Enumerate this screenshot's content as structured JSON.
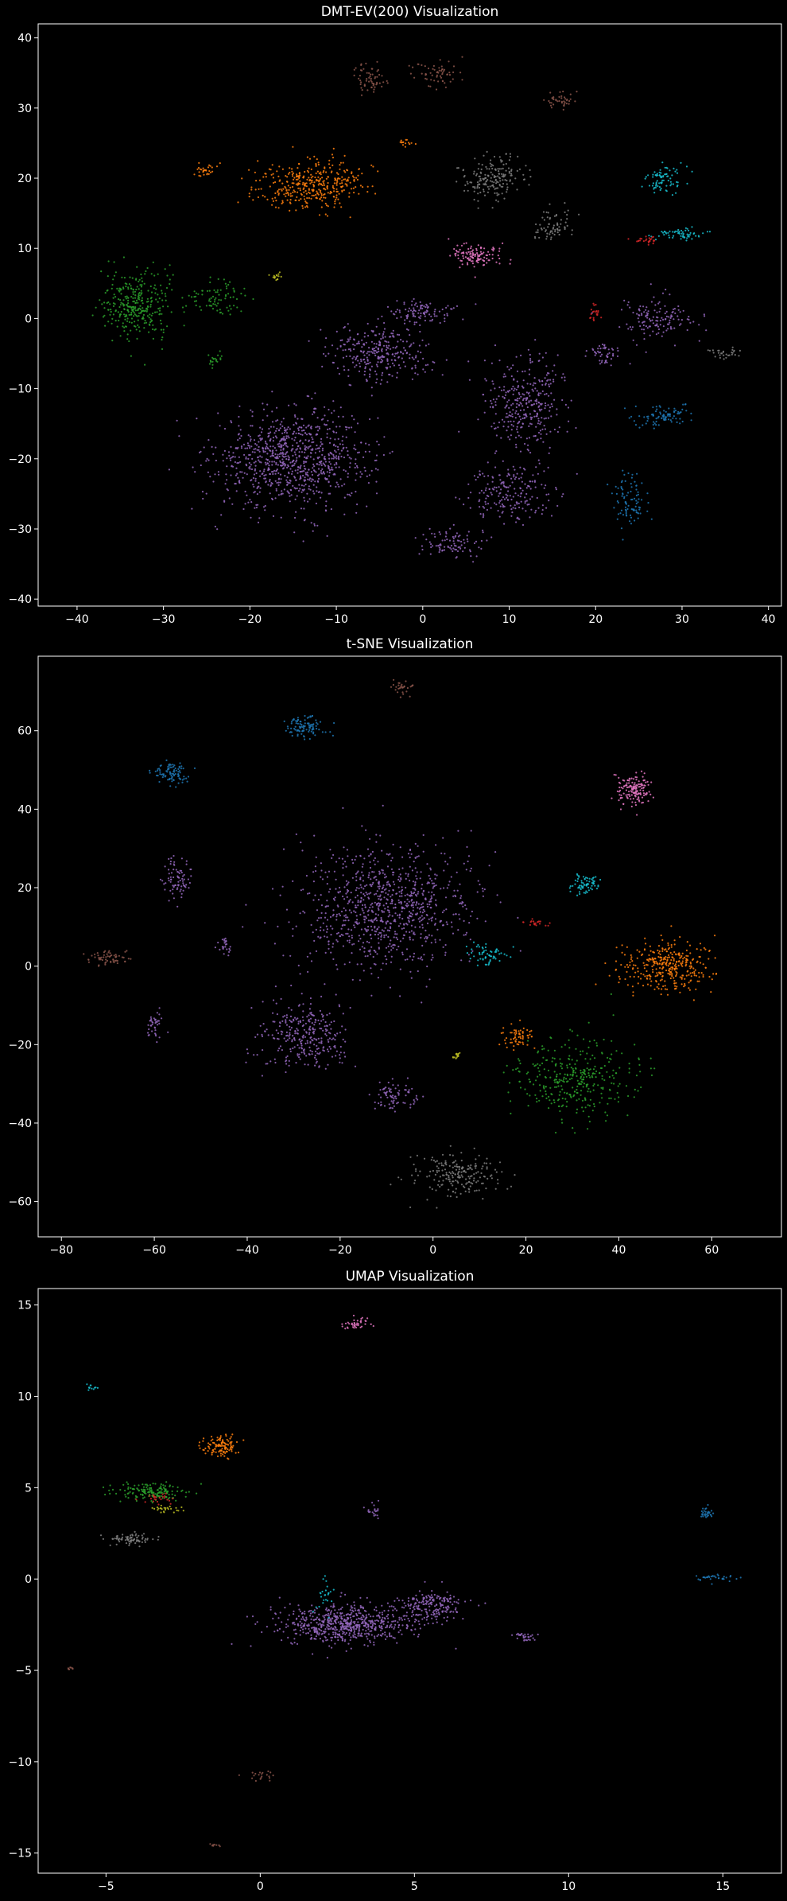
{
  "palette": {
    "blue": "#1f77b4",
    "orange": "#ff7f0e",
    "green": "#2ca02c",
    "red": "#d62728",
    "purple": "#9467bd",
    "brown": "#8c564b",
    "pink": "#e377c2",
    "gray": "#7f7f7f",
    "olive": "#bcbd22",
    "cyan": "#17becf",
    "background": "#000000",
    "foreground": "#ffffff"
  },
  "chart_data": [
    {
      "type": "scatter",
      "title": "DMT-EV(200) Visualization",
      "xlabel": "",
      "ylabel": "",
      "xlim": [
        -44.5,
        41.5
      ],
      "ylim": [
        -41,
        42
      ],
      "xticks": [
        -40,
        -30,
        -20,
        -10,
        0,
        10,
        20,
        30,
        40
      ],
      "yticks": [
        -40,
        -30,
        -20,
        -10,
        0,
        10,
        20,
        30,
        40
      ],
      "grid": false,
      "legend": "none",
      "clusters": [
        {
          "color": "purple",
          "center": [
            -15,
            -20
          ],
          "spread": [
            9,
            7
          ],
          "n": 900
        },
        {
          "color": "purple",
          "center": [
            -5,
            -5
          ],
          "spread": [
            6,
            4
          ],
          "n": 300
        },
        {
          "color": "purple",
          "center": [
            12,
            -12
          ],
          "spread": [
            5,
            7
          ],
          "n": 330
        },
        {
          "color": "purple",
          "center": [
            10,
            -25
          ],
          "spread": [
            5,
            4
          ],
          "n": 200
        },
        {
          "color": "purple",
          "center": [
            3,
            -32
          ],
          "spread": [
            4,
            2
          ],
          "n": 90
        },
        {
          "color": "purple",
          "center": [
            27,
            0
          ],
          "spread": [
            4,
            3
          ],
          "n": 140
        },
        {
          "color": "purple",
          "center": [
            0,
            1
          ],
          "spread": [
            4,
            1.5
          ],
          "n": 100
        },
        {
          "color": "purple",
          "center": [
            21,
            -5
          ],
          "spread": [
            2,
            1.5
          ],
          "n": 50
        },
        {
          "color": "orange",
          "center": [
            -13,
            19
          ],
          "spread": [
            6,
            3.5
          ],
          "n": 380
        },
        {
          "color": "orange",
          "center": [
            -25,
            21
          ],
          "spread": [
            1.5,
            1
          ],
          "n": 30
        },
        {
          "color": "orange",
          "center": [
            -2,
            25
          ],
          "spread": [
            0.8,
            0.6
          ],
          "n": 15
        },
        {
          "color": "green",
          "center": [
            -33,
            2
          ],
          "spread": [
            4,
            5
          ],
          "n": 320
        },
        {
          "color": "green",
          "center": [
            -24,
            3
          ],
          "spread": [
            3,
            2.5
          ],
          "n": 80
        },
        {
          "color": "green",
          "center": [
            -24,
            -6
          ],
          "spread": [
            1,
            1
          ],
          "n": 20
        },
        {
          "color": "gray",
          "center": [
            8,
            20
          ],
          "spread": [
            4,
            3
          ],
          "n": 180
        },
        {
          "color": "gray",
          "center": [
            15,
            13
          ],
          "spread": [
            2,
            2.5
          ],
          "n": 70
        },
        {
          "color": "gray",
          "center": [
            35,
            -5
          ],
          "spread": [
            2,
            0.6
          ],
          "n": 30
        },
        {
          "color": "pink",
          "center": [
            6,
            9
          ],
          "spread": [
            3,
            1.6
          ],
          "n": 120
        },
        {
          "color": "cyan",
          "center": [
            28,
            20
          ],
          "spread": [
            2.5,
            2
          ],
          "n": 80
        },
        {
          "color": "cyan",
          "center": [
            30,
            12
          ],
          "spread": [
            3,
            1
          ],
          "n": 60
        },
        {
          "color": "blue",
          "center": [
            28,
            -14
          ],
          "spread": [
            3.5,
            1.5
          ],
          "n": 90
        },
        {
          "color": "blue",
          "center": [
            24,
            -26
          ],
          "spread": [
            2,
            3.5
          ],
          "n": 90
        },
        {
          "color": "brown",
          "center": [
            -6,
            34
          ],
          "spread": [
            2.5,
            2
          ],
          "n": 60
        },
        {
          "color": "brown",
          "center": [
            2,
            35
          ],
          "spread": [
            3,
            2
          ],
          "n": 60
        },
        {
          "color": "brown",
          "center": [
            16,
            31
          ],
          "spread": [
            2,
            1.5
          ],
          "n": 40
        },
        {
          "color": "red",
          "center": [
            26,
            11
          ],
          "spread": [
            2,
            0.5
          ],
          "n": 25
        },
        {
          "color": "red",
          "center": [
            20,
            1
          ],
          "spread": [
            0.6,
            2
          ],
          "n": 20
        },
        {
          "color": "olive",
          "center": [
            -17,
            6
          ],
          "spread": [
            1,
            0.6
          ],
          "n": 15
        }
      ]
    },
    {
      "type": "scatter",
      "title": "t-SNE Visualization",
      "xlabel": "",
      "ylabel": "",
      "xlim": [
        -85,
        75
      ],
      "ylim": [
        -69,
        79
      ],
      "xticks": [
        -80,
        -60,
        -40,
        -20,
        0,
        20,
        40,
        60
      ],
      "yticks": [
        -60,
        -40,
        -20,
        0,
        20,
        40,
        60
      ],
      "grid": false,
      "legend": "none",
      "clusters": [
        {
          "color": "purple",
          "center": [
            -10,
            15
          ],
          "spread": [
            18,
            16
          ],
          "n": 900
        },
        {
          "color": "purple",
          "center": [
            -28,
            -18
          ],
          "spread": [
            9,
            9
          ],
          "n": 300
        },
        {
          "color": "purple",
          "center": [
            -8,
            -33
          ],
          "spread": [
            5,
            4
          ],
          "n": 80
        },
        {
          "color": "purple",
          "center": [
            -55,
            22
          ],
          "spread": [
            3,
            5
          ],
          "n": 80
        },
        {
          "color": "purple",
          "center": [
            -60,
            -15
          ],
          "spread": [
            2,
            4
          ],
          "n": 40
        },
        {
          "color": "purple",
          "center": [
            -45,
            5
          ],
          "spread": [
            2,
            2
          ],
          "n": 25
        },
        {
          "color": "orange",
          "center": [
            50,
            0
          ],
          "spread": [
            10,
            6
          ],
          "n": 350
        },
        {
          "color": "orange",
          "center": [
            18,
            -18
          ],
          "spread": [
            3,
            3
          ],
          "n": 60
        },
        {
          "color": "green",
          "center": [
            30,
            -28
          ],
          "spread": [
            13,
            10
          ],
          "n": 350
        },
        {
          "color": "gray",
          "center": [
            5,
            -53
          ],
          "spread": [
            9,
            5
          ],
          "n": 200
        },
        {
          "color": "pink",
          "center": [
            43,
            45
          ],
          "spread": [
            4,
            4
          ],
          "n": 150
        },
        {
          "color": "cyan",
          "center": [
            33,
            21
          ],
          "spread": [
            3,
            3
          ],
          "n": 70
        },
        {
          "color": "cyan",
          "center": [
            12,
            3
          ],
          "spread": [
            4,
            3
          ],
          "n": 60
        },
        {
          "color": "blue",
          "center": [
            -28,
            61
          ],
          "spread": [
            4,
            3
          ],
          "n": 100
        },
        {
          "color": "blue",
          "center": [
            -56,
            49
          ],
          "spread": [
            4,
            3
          ],
          "n": 90
        },
        {
          "color": "brown",
          "center": [
            -70,
            2
          ],
          "spread": [
            6,
            2
          ],
          "n": 60
        },
        {
          "color": "brown",
          "center": [
            -7,
            71
          ],
          "spread": [
            2,
            1.5
          ],
          "n": 30
        },
        {
          "color": "red",
          "center": [
            22,
            11
          ],
          "spread": [
            3,
            1
          ],
          "n": 20
        },
        {
          "color": "olive",
          "center": [
            5,
            -23
          ],
          "spread": [
            1,
            1
          ],
          "n": 15
        }
      ]
    },
    {
      "type": "scatter",
      "title": "UMAP Visualization",
      "xlabel": "",
      "ylabel": "",
      "xlim": [
        -7.2,
        16.9
      ],
      "ylim": [
        -16.1,
        15.9
      ],
      "xticks": [
        -5,
        0,
        5,
        10,
        15
      ],
      "yticks": [
        -15,
        -10,
        -5,
        0,
        5,
        10,
        15
      ],
      "grid": false,
      "legend": "none",
      "clusters": [
        {
          "color": "purple",
          "center": [
            2.8,
            -2.5
          ],
          "spread": [
            2.2,
            1.1
          ],
          "n": 650
        },
        {
          "color": "purple",
          "center": [
            5.5,
            -1.5
          ],
          "spread": [
            1.2,
            0.8
          ],
          "n": 200
        },
        {
          "color": "purple",
          "center": [
            8.6,
            -3.2
          ],
          "spread": [
            0.4,
            0.3
          ],
          "n": 30
        },
        {
          "color": "purple",
          "center": [
            3.7,
            3.8
          ],
          "spread": [
            0.2,
            0.4
          ],
          "n": 20
        },
        {
          "color": "orange",
          "center": [
            -1.3,
            7.3
          ],
          "spread": [
            0.6,
            0.6
          ],
          "n": 120
        },
        {
          "color": "green",
          "center": [
            -3.6,
            4.8
          ],
          "spread": [
            1.1,
            0.5
          ],
          "n": 160
        },
        {
          "color": "gray",
          "center": [
            -4.2,
            2.2
          ],
          "spread": [
            0.9,
            0.3
          ],
          "n": 80
        },
        {
          "color": "pink",
          "center": [
            3.1,
            14
          ],
          "spread": [
            0.4,
            0.4
          ],
          "n": 40
        },
        {
          "color": "blue",
          "center": [
            14.5,
            3.6
          ],
          "spread": [
            0.25,
            0.3
          ],
          "n": 30
        },
        {
          "color": "blue",
          "center": [
            14.8,
            0.1
          ],
          "spread": [
            0.8,
            0.2
          ],
          "n": 35
        },
        {
          "color": "cyan",
          "center": [
            -5.5,
            10.5
          ],
          "spread": [
            0.2,
            0.2
          ],
          "n": 12
        },
        {
          "color": "cyan",
          "center": [
            2.1,
            -1.0
          ],
          "spread": [
            0.3,
            0.8
          ],
          "n": 25
        },
        {
          "color": "brown",
          "center": [
            0,
            -10.8
          ],
          "spread": [
            0.5,
            0.3
          ],
          "n": 20
        },
        {
          "color": "brown",
          "center": [
            -6.2,
            -4.9
          ],
          "spread": [
            0.2,
            0.1
          ],
          "n": 8
        },
        {
          "color": "brown",
          "center": [
            -1.5,
            -14.6
          ],
          "spread": [
            0.2,
            0.1
          ],
          "n": 8
        },
        {
          "color": "red",
          "center": [
            -3.3,
            4.4
          ],
          "spread": [
            0.6,
            0.3
          ],
          "n": 25
        },
        {
          "color": "olive",
          "center": [
            -3.0,
            3.8
          ],
          "spread": [
            0.6,
            0.2
          ],
          "n": 25
        }
      ]
    }
  ]
}
